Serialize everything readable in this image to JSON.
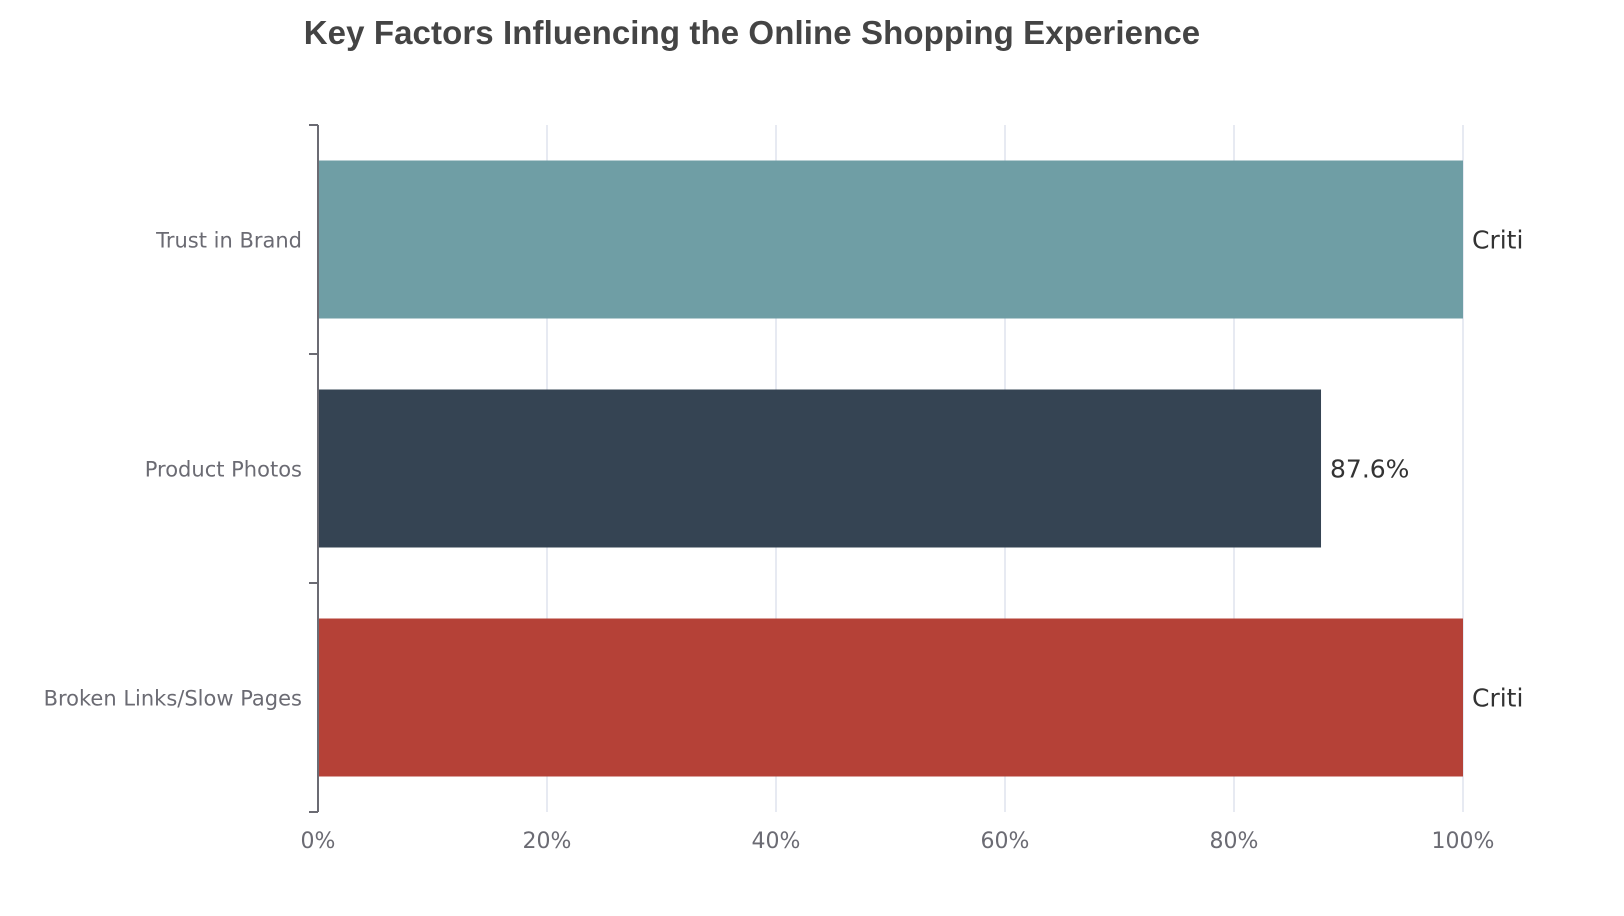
{
  "chart_data": {
    "type": "bar",
    "orientation": "horizontal",
    "title": "Key Factors Influencing the Online Shopping Experience",
    "xlabel": "",
    "ylabel": "",
    "xlim": [
      0,
      100
    ],
    "x_ticks": [
      "0%",
      "20%",
      "40%",
      "60%",
      "80%",
      "100%"
    ],
    "grid": "vertical",
    "legend": "none",
    "categories": [
      "Trust in Brand",
      "Product Photos",
      "Broken Links/Slow Pages"
    ],
    "values": [
      100,
      87.6,
      100
    ],
    "data_labels": [
      "Criti",
      "87.6%",
      "Criti"
    ],
    "colors": [
      "#6f9ea5",
      "#354453",
      "#b54137"
    ]
  },
  "colors": {
    "title": "#444444",
    "axis": "#6b6b73",
    "tick_label": "#6b6b73",
    "grid": "#dfe3ee",
    "data_label": "#333333"
  }
}
